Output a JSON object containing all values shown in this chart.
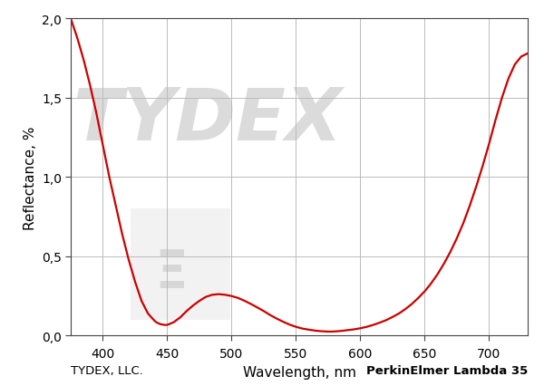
{
  "title": "",
  "xlabel": "Wavelength, nm",
  "ylabel": "Reflectance, %",
  "footer_left": "TYDEX, LLC.",
  "footer_right": "PerkinElmer Lambda 35",
  "xlim": [
    375,
    730
  ],
  "ylim": [
    0.0,
    2.0
  ],
  "xticks": [
    400,
    450,
    500,
    550,
    600,
    650,
    700
  ],
  "yticks": [
    0.0,
    0.5,
    1.0,
    1.5,
    2.0
  ],
  "ytick_labels": [
    "0,0",
    "0,5",
    "1,0",
    "1,5",
    "2,0"
  ],
  "line_color": "#cc0000",
  "line_width": 1.6,
  "background_color": "#ffffff",
  "grid_color": "#bbbbbb",
  "curve_x": [
    375,
    380,
    385,
    390,
    395,
    400,
    405,
    410,
    415,
    420,
    425,
    430,
    435,
    440,
    442,
    445,
    448,
    450,
    455,
    460,
    465,
    470,
    475,
    480,
    485,
    490,
    495,
    500,
    505,
    510,
    515,
    520,
    525,
    530,
    535,
    540,
    545,
    550,
    555,
    560,
    565,
    570,
    575,
    578,
    582,
    585,
    590,
    595,
    600,
    605,
    610,
    615,
    620,
    625,
    630,
    635,
    640,
    645,
    650,
    655,
    660,
    665,
    670,
    675,
    680,
    685,
    690,
    695,
    700,
    705,
    710,
    715,
    720,
    725,
    730
  ],
  "curve_y": [
    2.0,
    1.88,
    1.74,
    1.58,
    1.4,
    1.2,
    1.0,
    0.82,
    0.64,
    0.48,
    0.34,
    0.22,
    0.14,
    0.095,
    0.082,
    0.072,
    0.068,
    0.068,
    0.085,
    0.115,
    0.155,
    0.19,
    0.22,
    0.245,
    0.258,
    0.262,
    0.258,
    0.25,
    0.238,
    0.22,
    0.2,
    0.178,
    0.155,
    0.13,
    0.108,
    0.088,
    0.07,
    0.056,
    0.045,
    0.038,
    0.032,
    0.028,
    0.026,
    0.026,
    0.028,
    0.03,
    0.035,
    0.04,
    0.047,
    0.056,
    0.068,
    0.082,
    0.098,
    0.118,
    0.14,
    0.168,
    0.2,
    0.238,
    0.28,
    0.33,
    0.388,
    0.455,
    0.53,
    0.615,
    0.71,
    0.82,
    0.94,
    1.07,
    1.21,
    1.36,
    1.5,
    1.62,
    1.71,
    1.76,
    1.78
  ]
}
